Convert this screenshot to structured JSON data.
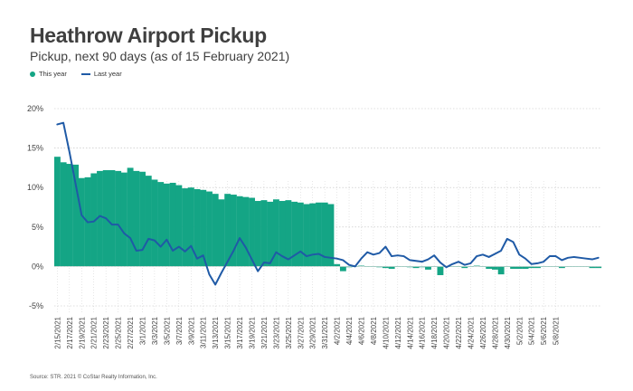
{
  "title": "Heathrow Airport Pickup",
  "subtitle": "Pickup, next 90 days (as of 15 February 2021)",
  "source": "Source: STR. 2021 © CoStar Realty Information, Inc.",
  "colors": {
    "this_year": "#14a585",
    "last_year": "#1f5aa6",
    "grid": "#bfbfbf"
  },
  "chart_data": {
    "type": "bar",
    "grid": "horizontal gridlines at each y tick",
    "legend_position": "top-left",
    "y_tick_labels": [
      "20%",
      "15%",
      "10%",
      "5%",
      "0%",
      "-5%"
    ],
    "y_ticks": [
      20,
      15,
      10,
      5,
      0,
      -5
    ],
    "ylim": [
      -5,
      20
    ],
    "x_tick_labels": [
      "2/15/2021",
      "2/17/2021",
      "2/19/2021",
      "2/21/2021",
      "2/23/2021",
      "2/25/2021",
      "2/27/2021",
      "3/1/2021",
      "3/3/2021",
      "3/5/2021",
      "3/7/2021",
      "3/9/2021",
      "3/11/2021",
      "3/13/2021",
      "3/15/2021",
      "3/17/2021",
      "3/19/2021",
      "3/21/2021",
      "3/23/2021",
      "3/25/2021",
      "3/27/2021",
      "3/29/2021",
      "3/31/2021",
      "4/2/2021",
      "4/4/2021",
      "4/6/2021",
      "4/8/2021",
      "4/10/2021",
      "4/12/2021",
      "4/14/2021",
      "4/16/2021",
      "4/18/2021",
      "4/20/2021",
      "4/22/2021",
      "4/24/2021",
      "4/26/2021",
      "4/28/2021",
      "4/30/2021",
      "5/2/2021",
      "5/4/2021",
      "5/6/2021",
      "5/8/2021"
    ],
    "series": [
      {
        "name": "This year",
        "type": "bar",
        "values": [
          13.9,
          13.2,
          13.0,
          12.9,
          11.2,
          11.3,
          11.8,
          12.1,
          12.2,
          12.2,
          12.1,
          11.9,
          12.5,
          12.1,
          12.0,
          11.5,
          11.0,
          10.7,
          10.5,
          10.6,
          10.3,
          9.9,
          10.0,
          9.8,
          9.7,
          9.5,
          9.2,
          8.5,
          9.2,
          9.1,
          8.9,
          8.8,
          8.7,
          8.3,
          8.4,
          8.2,
          8.5,
          8.3,
          8.4,
          8.2,
          8.1,
          7.9,
          8.0,
          8.1,
          8.1,
          7.9,
          0.3,
          -0.6,
          -0.1,
          0.0,
          0.1,
          0.0,
          0.0,
          -0.1,
          -0.2,
          -0.3,
          0.0,
          0.0,
          -0.1,
          -0.2,
          -0.1,
          -0.4,
          0.0,
          -1.1,
          0.0,
          0.0,
          0.0,
          -0.2,
          0.0,
          0.1,
          0.0,
          -0.3,
          -0.4,
          -1.0,
          0.0,
          -0.3,
          -0.3,
          -0.3,
          -0.2,
          -0.2,
          0.0,
          0.0,
          0.0,
          -0.2,
          0.0,
          0.0,
          0.0,
          0.0,
          -0.2,
          -0.2
        ]
      },
      {
        "name": "Last year",
        "type": "line",
        "values": [
          18.0,
          18.2,
          14.5,
          10.5,
          6.5,
          5.6,
          5.7,
          6.4,
          6.1,
          5.3,
          5.3,
          4.2,
          3.6,
          2.0,
          2.1,
          3.5,
          3.3,
          2.5,
          3.4,
          2.0,
          2.5,
          1.9,
          2.6,
          1.0,
          1.4,
          -1.0,
          -2.3,
          -0.8,
          0.6,
          2.0,
          3.6,
          2.4,
          0.9,
          -0.6,
          0.5,
          0.4,
          1.8,
          1.3,
          0.9,
          1.4,
          1.9,
          1.3,
          1.5,
          1.6,
          1.2,
          1.1,
          1.0,
          0.8,
          0.2,
          0.0,
          1.0,
          1.8,
          1.5,
          1.7,
          2.5,
          1.3,
          1.4,
          1.3,
          0.8,
          0.7,
          0.6,
          0.9,
          1.4,
          0.5,
          -0.1,
          0.3,
          0.6,
          0.2,
          0.4,
          1.3,
          1.5,
          1.2,
          1.6,
          2.0,
          3.5,
          3.1,
          1.5,
          1.0,
          0.3,
          0.4,
          0.6,
          1.3,
          1.3,
          0.8,
          1.1,
          1.2,
          1.1,
          1.0,
          0.9,
          1.1
        ]
      }
    ]
  }
}
